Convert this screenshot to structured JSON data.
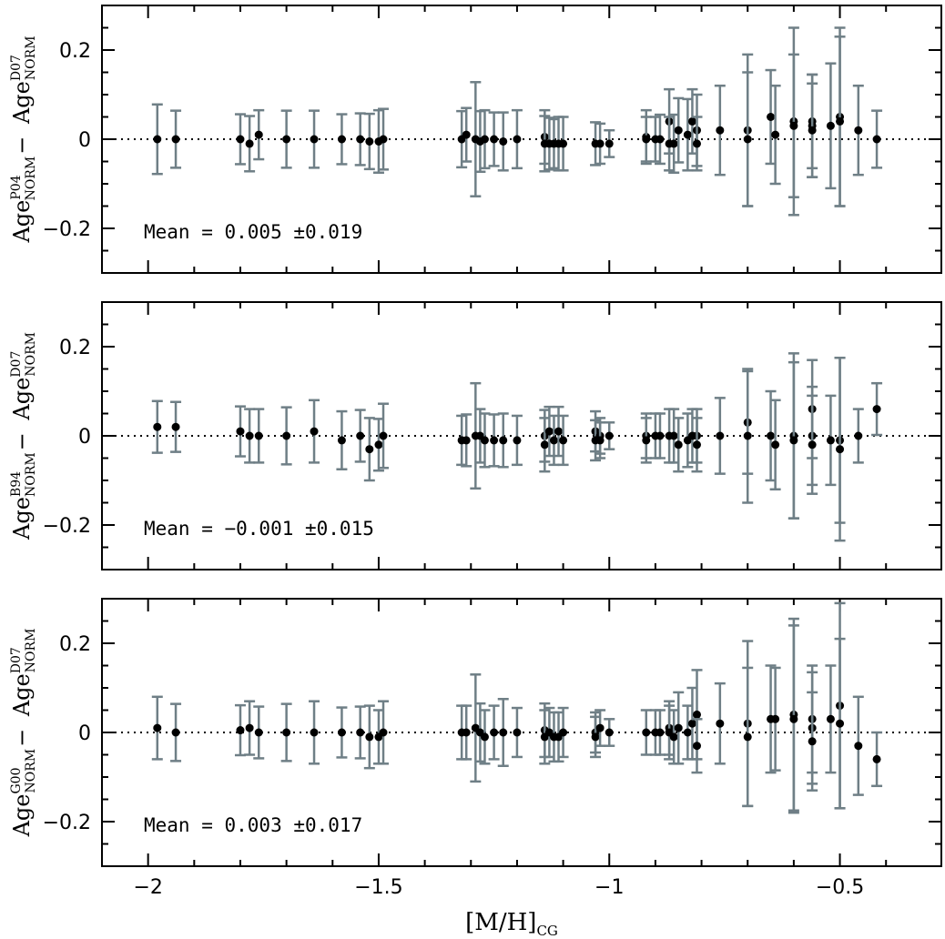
{
  "x_axis": {
    "label_main": "[M/H]",
    "label_sub": "CG",
    "ticks": [
      "−2",
      "−1.5",
      "−1",
      "−0.5"
    ]
  },
  "colors": {
    "errorbar": "#6f7f86",
    "point": "#000000",
    "zero_line": "#000000"
  },
  "chart_data": [
    {
      "type": "scatter",
      "ylabel": {
        "a_base": "Age",
        "a_sup": "P04",
        "a_sub": "NORM",
        "minus": "− ",
        "b_base": "Age",
        "b_sup": "D07",
        "b_sub": "NORM"
      },
      "mean_text": "Mean = 0.005 ±0.019",
      "xlim": [
        -2.1,
        -0.28
      ],
      "ylim": [
        -0.3,
        0.3
      ],
      "yticks": [
        -0.2,
        0,
        0.2
      ],
      "ytick_labels": [
        "−0.2",
        "0",
        "0.2"
      ],
      "zero_line": true,
      "points": [
        {
          "x": -1.98,
          "y": 0.0,
          "err": 0.078
        },
        {
          "x": -1.94,
          "y": 0.0,
          "err": 0.064
        },
        {
          "x": -1.8,
          "y": 0.0,
          "err": 0.056
        },
        {
          "x": -1.78,
          "y": -0.01,
          "err": 0.062
        },
        {
          "x": -1.76,
          "y": 0.01,
          "err": 0.055
        },
        {
          "x": -1.7,
          "y": 0.0,
          "err": 0.064
        },
        {
          "x": -1.64,
          "y": 0.0,
          "err": 0.064
        },
        {
          "x": -1.58,
          "y": 0.0,
          "err": 0.056
        },
        {
          "x": -1.54,
          "y": 0.0,
          "err": 0.058
        },
        {
          "x": -1.52,
          "y": -0.005,
          "err": 0.062
        },
        {
          "x": -1.5,
          "y": -0.005,
          "err": 0.07
        },
        {
          "x": -1.49,
          "y": 0.0,
          "err": 0.068
        },
        {
          "x": -1.32,
          "y": 0.0,
          "err": 0.063
        },
        {
          "x": -1.31,
          "y": 0.01,
          "err": 0.06
        },
        {
          "x": -1.29,
          "y": 0.0,
          "err": 0.128
        },
        {
          "x": -1.28,
          "y": -0.005,
          "err": 0.068
        },
        {
          "x": -1.27,
          "y": 0.0,
          "err": 0.065
        },
        {
          "x": -1.25,
          "y": 0.0,
          "err": 0.06
        },
        {
          "x": -1.23,
          "y": -0.005,
          "err": 0.065
        },
        {
          "x": -1.2,
          "y": 0.0,
          "err": 0.065
        },
        {
          "x": -1.14,
          "y": 0.005,
          "err": 0.06
        },
        {
          "x": -1.14,
          "y": -0.01,
          "err": 0.062
        },
        {
          "x": -1.13,
          "y": -0.01,
          "err": 0.058
        },
        {
          "x": -1.12,
          "y": -0.01,
          "err": 0.055
        },
        {
          "x": -1.11,
          "y": -0.01,
          "err": 0.06
        },
        {
          "x": -1.1,
          "y": -0.01,
          "err": 0.06
        },
        {
          "x": -1.03,
          "y": -0.01,
          "err": 0.048
        },
        {
          "x": -1.02,
          "y": -0.01,
          "err": 0.045
        },
        {
          "x": -1.0,
          "y": -0.01,
          "err": 0.03
        },
        {
          "x": -0.92,
          "y": 0.005,
          "err": 0.06
        },
        {
          "x": -0.92,
          "y": 0.0,
          "err": 0.05
        },
        {
          "x": -0.9,
          "y": 0.0,
          "err": 0.05
        },
        {
          "x": -0.89,
          "y": 0.0,
          "err": 0.055
        },
        {
          "x": -0.87,
          "y": 0.04,
          "err": 0.072
        },
        {
          "x": -0.87,
          "y": -0.01,
          "err": 0.06
        },
        {
          "x": -0.86,
          "y": -0.01,
          "err": 0.065
        },
        {
          "x": -0.85,
          "y": 0.02,
          "err": 0.072
        },
        {
          "x": -0.83,
          "y": 0.01,
          "err": 0.08
        },
        {
          "x": -0.82,
          "y": 0.04,
          "err": 0.072
        },
        {
          "x": -0.81,
          "y": 0.02,
          "err": 0.08
        },
        {
          "x": -0.81,
          "y": -0.01,
          "err": 0.06
        },
        {
          "x": -0.76,
          "y": 0.02,
          "err": 0.1
        },
        {
          "x": -0.7,
          "y": 0.02,
          "err": 0.17
        },
        {
          "x": -0.7,
          "y": 0.0,
          "err": 0.15
        },
        {
          "x": -0.65,
          "y": 0.05,
          "err": 0.105
        },
        {
          "x": -0.64,
          "y": 0.01,
          "err": 0.11
        },
        {
          "x": -0.6,
          "y": 0.04,
          "err": 0.21
        },
        {
          "x": -0.6,
          "y": 0.03,
          "err": 0.16
        },
        {
          "x": -0.56,
          "y": 0.04,
          "err": 0.105
        },
        {
          "x": -0.56,
          "y": 0.03,
          "err": 0.115
        },
        {
          "x": -0.56,
          "y": 0.02,
          "err": 0.105
        },
        {
          "x": -0.52,
          "y": 0.03,
          "err": 0.14
        },
        {
          "x": -0.5,
          "y": 0.05,
          "err": 0.2
        },
        {
          "x": -0.5,
          "y": 0.04,
          "err": 0.19
        },
        {
          "x": -0.46,
          "y": 0.02,
          "err": 0.1
        },
        {
          "x": -0.42,
          "y": 0.0,
          "err": 0.064
        }
      ]
    },
    {
      "type": "scatter",
      "ylabel": {
        "a_base": "Age",
        "a_sup": "B94",
        "a_sub": "NORM",
        "minus": "− ",
        "b_base": "Age",
        "b_sup": "D07",
        "b_sub": "NORM"
      },
      "mean_text": "Mean = −0.001 ±0.015",
      "xlim": [
        -2.1,
        -0.28
      ],
      "ylim": [
        -0.3,
        0.3
      ],
      "yticks": [
        -0.2,
        0,
        0.2
      ],
      "ytick_labels": [
        "−0.2",
        "0",
        "0.2"
      ],
      "zero_line": true,
      "points": [
        {
          "x": -1.98,
          "y": 0.02,
          "err": 0.058
        },
        {
          "x": -1.94,
          "y": 0.02,
          "err": 0.056
        },
        {
          "x": -1.8,
          "y": 0.01,
          "err": 0.056
        },
        {
          "x": -1.78,
          "y": 0.0,
          "err": 0.06
        },
        {
          "x": -1.76,
          "y": 0.0,
          "err": 0.06
        },
        {
          "x": -1.7,
          "y": 0.0,
          "err": 0.064
        },
        {
          "x": -1.64,
          "y": 0.01,
          "err": 0.07
        },
        {
          "x": -1.58,
          "y": -0.01,
          "err": 0.065
        },
        {
          "x": -1.54,
          "y": 0.0,
          "err": 0.058
        },
        {
          "x": -1.52,
          "y": -0.03,
          "err": 0.07
        },
        {
          "x": -1.5,
          "y": -0.02,
          "err": 0.058
        },
        {
          "x": -1.49,
          "y": 0.0,
          "err": 0.072
        },
        {
          "x": -1.32,
          "y": -0.01,
          "err": 0.055
        },
        {
          "x": -1.31,
          "y": -0.01,
          "err": 0.058
        },
        {
          "x": -1.29,
          "y": 0.0,
          "err": 0.118
        },
        {
          "x": -1.28,
          "y": 0.0,
          "err": 0.06
        },
        {
          "x": -1.27,
          "y": -0.01,
          "err": 0.06
        },
        {
          "x": -1.25,
          "y": -0.01,
          "err": 0.058
        },
        {
          "x": -1.23,
          "y": -0.01,
          "err": 0.06
        },
        {
          "x": -1.2,
          "y": -0.01,
          "err": 0.055
        },
        {
          "x": -1.14,
          "y": 0.0,
          "err": 0.058
        },
        {
          "x": -1.14,
          "y": -0.02,
          "err": 0.06
        },
        {
          "x": -1.13,
          "y": 0.01,
          "err": 0.055
        },
        {
          "x": -1.12,
          "y": -0.01,
          "err": 0.055
        },
        {
          "x": -1.11,
          "y": 0.01,
          "err": 0.055
        },
        {
          "x": -1.1,
          "y": -0.01,
          "err": 0.055
        },
        {
          "x": -1.03,
          "y": 0.01,
          "err": 0.045
        },
        {
          "x": -1.03,
          "y": -0.01,
          "err": 0.045
        },
        {
          "x": -1.02,
          "y": 0.0,
          "err": 0.04
        },
        {
          "x": -1.02,
          "y": -0.01,
          "err": 0.04
        },
        {
          "x": -1.0,
          "y": 0.0,
          "err": 0.03
        },
        {
          "x": -0.92,
          "y": 0.0,
          "err": 0.05
        },
        {
          "x": -0.92,
          "y": -0.01,
          "err": 0.05
        },
        {
          "x": -0.9,
          "y": 0.0,
          "err": 0.05
        },
        {
          "x": -0.89,
          "y": 0.0,
          "err": 0.05
        },
        {
          "x": -0.87,
          "y": 0.0,
          "err": 0.06
        },
        {
          "x": -0.86,
          "y": 0.0,
          "err": 0.06
        },
        {
          "x": -0.85,
          "y": -0.02,
          "err": 0.06
        },
        {
          "x": -0.83,
          "y": -0.01,
          "err": 0.06
        },
        {
          "x": -0.82,
          "y": 0.0,
          "err": 0.06
        },
        {
          "x": -0.81,
          "y": 0.0,
          "err": 0.06
        },
        {
          "x": -0.81,
          "y": -0.02,
          "err": 0.06
        },
        {
          "x": -0.76,
          "y": 0.0,
          "err": 0.085
        },
        {
          "x": -0.7,
          "y": 0.03,
          "err": 0.115
        },
        {
          "x": -0.7,
          "y": 0.0,
          "err": 0.15
        },
        {
          "x": -0.65,
          "y": 0.0,
          "err": 0.1
        },
        {
          "x": -0.64,
          "y": -0.02,
          "err": 0.1
        },
        {
          "x": -0.6,
          "y": 0.0,
          "err": 0.185
        },
        {
          "x": -0.6,
          "y": -0.01,
          "err": 0.175
        },
        {
          "x": -0.56,
          "y": 0.06,
          "err": 0.11
        },
        {
          "x": -0.56,
          "y": 0.0,
          "err": 0.11
        },
        {
          "x": -0.56,
          "y": -0.02,
          "err": 0.11
        },
        {
          "x": -0.52,
          "y": -0.01,
          "err": 0.1
        },
        {
          "x": -0.5,
          "y": -0.01,
          "err": 0.185
        },
        {
          "x": -0.5,
          "y": -0.03,
          "err": 0.205
        },
        {
          "x": -0.46,
          "y": 0.0,
          "err": 0.06
        },
        {
          "x": -0.42,
          "y": 0.06,
          "err": 0.058
        }
      ]
    },
    {
      "type": "scatter",
      "ylabel": {
        "a_base": "Age",
        "a_sup": "G00",
        "a_sub": "NORM",
        "minus": "− ",
        "b_base": "Age",
        "b_sup": "D07",
        "b_sub": "NORM"
      },
      "mean_text": "Mean = 0.003 ±0.017",
      "xlim": [
        -2.1,
        -0.28
      ],
      "ylim": [
        -0.3,
        0.3
      ],
      "yticks": [
        -0.2,
        0,
        0.2
      ],
      "ytick_labels": [
        "−0.2",
        "0",
        "0.2"
      ],
      "zero_line": true,
      "points": [
        {
          "x": -1.98,
          "y": 0.01,
          "err": 0.07
        },
        {
          "x": -1.94,
          "y": 0.0,
          "err": 0.064
        },
        {
          "x": -1.8,
          "y": 0.005,
          "err": 0.056
        },
        {
          "x": -1.78,
          "y": 0.01,
          "err": 0.06
        },
        {
          "x": -1.76,
          "y": 0.0,
          "err": 0.058
        },
        {
          "x": -1.7,
          "y": 0.0,
          "err": 0.064
        },
        {
          "x": -1.64,
          "y": 0.0,
          "err": 0.07
        },
        {
          "x": -1.58,
          "y": 0.0,
          "err": 0.056
        },
        {
          "x": -1.54,
          "y": 0.0,
          "err": 0.058
        },
        {
          "x": -1.52,
          "y": -0.01,
          "err": 0.07
        },
        {
          "x": -1.5,
          "y": -0.01,
          "err": 0.06
        },
        {
          "x": -1.49,
          "y": 0.0,
          "err": 0.07
        },
        {
          "x": -1.32,
          "y": 0.0,
          "err": 0.06
        },
        {
          "x": -1.31,
          "y": 0.0,
          "err": 0.06
        },
        {
          "x": -1.29,
          "y": 0.01,
          "err": 0.12
        },
        {
          "x": -1.28,
          "y": 0.0,
          "err": 0.065
        },
        {
          "x": -1.27,
          "y": -0.01,
          "err": 0.06
        },
        {
          "x": -1.25,
          "y": 0.0,
          "err": 0.06
        },
        {
          "x": -1.23,
          "y": 0.0,
          "err": 0.075
        },
        {
          "x": -1.2,
          "y": 0.0,
          "err": 0.055
        },
        {
          "x": -1.14,
          "y": 0.005,
          "err": 0.06
        },
        {
          "x": -1.14,
          "y": -0.01,
          "err": 0.06
        },
        {
          "x": -1.13,
          "y": 0.0,
          "err": 0.055
        },
        {
          "x": -1.12,
          "y": -0.01,
          "err": 0.055
        },
        {
          "x": -1.11,
          "y": -0.01,
          "err": 0.055
        },
        {
          "x": -1.1,
          "y": 0.0,
          "err": 0.055
        },
        {
          "x": -1.03,
          "y": 0.0,
          "err": 0.045
        },
        {
          "x": -1.03,
          "y": -0.01,
          "err": 0.045
        },
        {
          "x": -1.02,
          "y": 0.01,
          "err": 0.04
        },
        {
          "x": -1.0,
          "y": 0.0,
          "err": 0.03
        },
        {
          "x": -0.92,
          "y": 0.0,
          "err": 0.05
        },
        {
          "x": -0.9,
          "y": 0.0,
          "err": 0.05
        },
        {
          "x": -0.89,
          "y": 0.0,
          "err": 0.05
        },
        {
          "x": -0.87,
          "y": 0.01,
          "err": 0.06
        },
        {
          "x": -0.87,
          "y": 0.0,
          "err": 0.06
        },
        {
          "x": -0.86,
          "y": -0.01,
          "err": 0.06
        },
        {
          "x": -0.85,
          "y": 0.01,
          "err": 0.08
        },
        {
          "x": -0.83,
          "y": 0.0,
          "err": 0.06
        },
        {
          "x": -0.82,
          "y": 0.02,
          "err": 0.08
        },
        {
          "x": -0.81,
          "y": 0.04,
          "err": 0.1
        },
        {
          "x": -0.81,
          "y": -0.03,
          "err": 0.06
        },
        {
          "x": -0.76,
          "y": 0.02,
          "err": 0.09
        },
        {
          "x": -0.7,
          "y": 0.02,
          "err": 0.185
        },
        {
          "x": -0.7,
          "y": -0.01,
          "err": 0.155
        },
        {
          "x": -0.65,
          "y": 0.03,
          "err": 0.12
        },
        {
          "x": -0.64,
          "y": 0.03,
          "err": 0.115
        },
        {
          "x": -0.6,
          "y": 0.04,
          "err": 0.215
        },
        {
          "x": -0.6,
          "y": 0.03,
          "err": 0.21
        },
        {
          "x": -0.56,
          "y": 0.03,
          "err": 0.12
        },
        {
          "x": -0.56,
          "y": 0.01,
          "err": 0.125
        },
        {
          "x": -0.56,
          "y": -0.02,
          "err": 0.11
        },
        {
          "x": -0.52,
          "y": 0.03,
          "err": 0.12
        },
        {
          "x": -0.5,
          "y": 0.06,
          "err": 0.23
        },
        {
          "x": -0.5,
          "y": 0.02,
          "err": 0.19
        },
        {
          "x": -0.46,
          "y": -0.03,
          "err": 0.11
        },
        {
          "x": -0.42,
          "y": -0.06,
          "err": 0.06
        }
      ]
    }
  ]
}
